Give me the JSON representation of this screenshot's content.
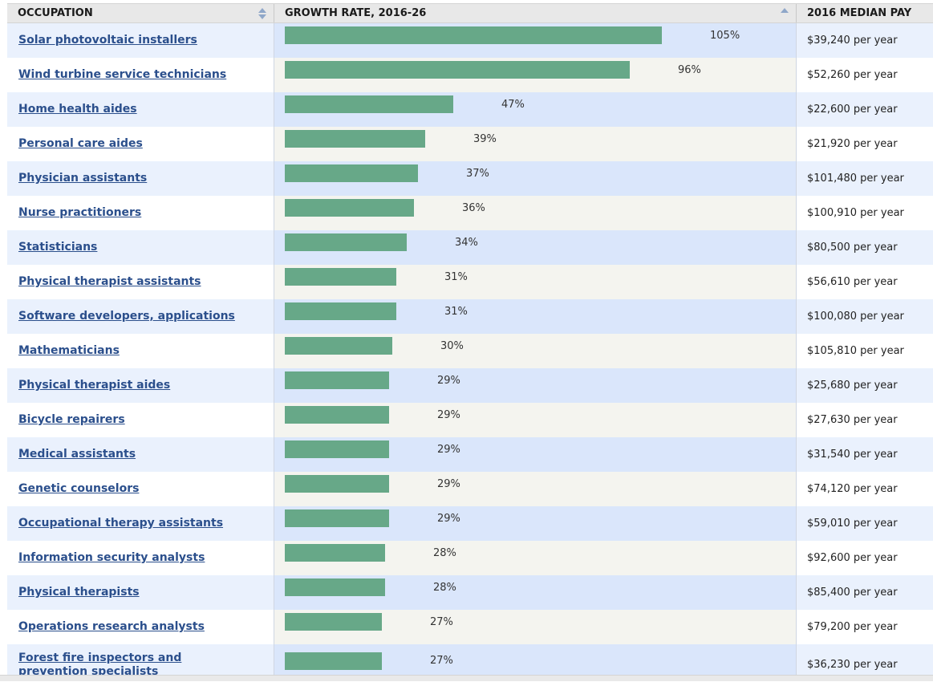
{
  "header": {
    "occupation": "OCCUPATION",
    "growth": "GROWTH RATE, 2016-26",
    "pay": "2016 MEDIAN PAY"
  },
  "colors": {
    "bar": "#67a888",
    "link": "#2b4f8c"
  },
  "scale_max_pct": 105,
  "rows": [
    {
      "occupation": "Solar photovoltaic installers",
      "growth": 105,
      "growth_label": "105%",
      "pay": "$39,240 per year"
    },
    {
      "occupation": "Wind turbine service technicians",
      "growth": 96,
      "growth_label": "96%",
      "pay": "$52,260 per year"
    },
    {
      "occupation": "Home health aides",
      "growth": 47,
      "growth_label": "47%",
      "pay": "$22,600 per year"
    },
    {
      "occupation": "Personal care aides",
      "growth": 39,
      "growth_label": "39%",
      "pay": "$21,920 per year"
    },
    {
      "occupation": "Physician assistants",
      "growth": 37,
      "growth_label": "37%",
      "pay": "$101,480 per year"
    },
    {
      "occupation": "Nurse practitioners",
      "growth": 36,
      "growth_label": "36%",
      "pay": "$100,910 per year"
    },
    {
      "occupation": "Statisticians",
      "growth": 34,
      "growth_label": "34%",
      "pay": "$80,500 per year"
    },
    {
      "occupation": "Physical therapist assistants",
      "growth": 31,
      "growth_label": "31%",
      "pay": "$56,610 per year"
    },
    {
      "occupation": "Software developers, applications",
      "growth": 31,
      "growth_label": "31%",
      "pay": "$100,080 per year"
    },
    {
      "occupation": "Mathematicians",
      "growth": 30,
      "growth_label": "30%",
      "pay": "$105,810 per year"
    },
    {
      "occupation": "Physical therapist aides",
      "growth": 29,
      "growth_label": "29%",
      "pay": "$25,680 per year"
    },
    {
      "occupation": "Bicycle repairers",
      "growth": 29,
      "growth_label": "29%",
      "pay": "$27,630 per year"
    },
    {
      "occupation": "Medical assistants",
      "growth": 29,
      "growth_label": "29%",
      "pay": "$31,540 per year"
    },
    {
      "occupation": "Genetic counselors",
      "growth": 29,
      "growth_label": "29%",
      "pay": "$74,120 per year"
    },
    {
      "occupation": "Occupational therapy assistants",
      "growth": 29,
      "growth_label": "29%",
      "pay": "$59,010 per year"
    },
    {
      "occupation": "Information security analysts",
      "growth": 28,
      "growth_label": "28%",
      "pay": "$92,600 per year"
    },
    {
      "occupation": "Physical therapists",
      "growth": 28,
      "growth_label": "28%",
      "pay": "$85,400 per year"
    },
    {
      "occupation": "Operations research analysts",
      "growth": 27,
      "growth_label": "27%",
      "pay": "$79,200 per year"
    },
    {
      "occupation": "Forest fire inspectors and prevention specialists",
      "growth": 27,
      "growth_label": "27%",
      "pay": "$36,230 per year"
    }
  ]
}
